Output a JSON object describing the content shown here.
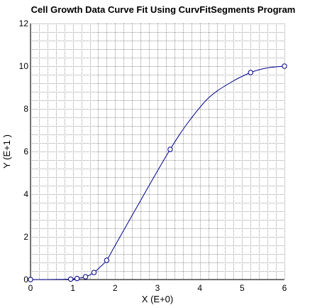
{
  "chart_data": {
    "type": "line",
    "title": "Cell Growth Data Curve Fit Using CurvFitSegments Program",
    "xlabel": "X (E+0)",
    "ylabel": "Y (E+1 )",
    "xlim": [
      0,
      6
    ],
    "ylim": [
      0,
      12
    ],
    "x_ticks": [
      "0",
      "1",
      "2",
      "3",
      "4",
      "5",
      "6"
    ],
    "y_ticks": [
      "0",
      "2",
      "4",
      "6",
      "8",
      "10",
      "12"
    ],
    "grid": true,
    "x_minor_step": 0.2,
    "y_minor_step": 0.4,
    "series": [
      {
        "kind": "markers",
        "marker": "circle",
        "x": [
          0.0,
          0.95,
          1.1,
          1.3,
          1.5,
          1.8,
          3.3,
          5.2,
          6.0
        ],
        "y": [
          0.0,
          0.02,
          0.05,
          0.13,
          0.33,
          0.9,
          6.1,
          9.7,
          10.0
        ]
      },
      {
        "kind": "curve",
        "x": [
          0.0,
          0.4,
          0.8,
          0.95,
          1.1,
          1.3,
          1.5,
          1.65,
          1.8,
          2.0,
          2.4,
          2.8,
          3.3,
          3.7,
          4.2,
          4.7,
          5.2,
          5.6,
          6.0
        ],
        "y": [
          0.0,
          0.0,
          0.01,
          0.02,
          0.05,
          0.13,
          0.33,
          0.6,
          0.9,
          1.6,
          3.0,
          4.4,
          6.1,
          7.3,
          8.5,
          9.2,
          9.7,
          9.92,
          10.0
        ]
      }
    ],
    "colors": {
      "line": "#00008b",
      "marker": "#00008b",
      "grid": "#9a9a9a",
      "axis": "#000000",
      "text": "#000000"
    }
  }
}
